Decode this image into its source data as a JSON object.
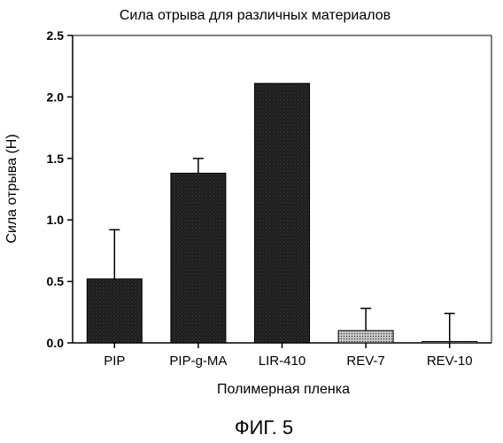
{
  "chart_data": {
    "type": "bar",
    "title": "Сила отрыва для различных материалов",
    "xlabel": "Полимерная пленка",
    "ylabel": "Сила отрыва (Н)",
    "ylim": [
      0,
      2.5
    ],
    "yticks": [
      "0.0",
      "0.5",
      "1.0",
      "1.5",
      "2.0",
      "2.5"
    ],
    "grid": false,
    "legend": "none",
    "categories": [
      "PIP",
      "PIP-g-MA",
      "LIR-410",
      "REV-7",
      "REV-10"
    ],
    "values": [
      0.52,
      1.38,
      2.11,
      0.1,
      0.0
    ],
    "error_upper": [
      0.4,
      0.12,
      0.0,
      0.18,
      0.24
    ],
    "fills": [
      "dark",
      "dark",
      "dark",
      "light",
      "light"
    ]
  },
  "colors": {
    "dark_bar": "#1c1c1c",
    "light_bar": "#9a9a9a",
    "axis": "#000000"
  },
  "caption": "ФИГ. 5"
}
